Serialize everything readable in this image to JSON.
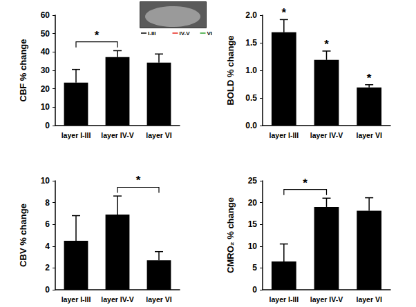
{
  "chart_data": [
    {
      "type": "bar",
      "ylabel": "CBF % change",
      "categories": [
        "layer I-III",
        "layer IV-V",
        "layer VI"
      ],
      "values": [
        23.3,
        37.2,
        34.2
      ],
      "errors": [
        7.2,
        3.5,
        4.7
      ],
      "color": "#000000",
      "ylim": [
        0,
        60
      ],
      "yticks": [
        0,
        10,
        20,
        30,
        40,
        50,
        60
      ],
      "grid": false,
      "annotations": [
        {
          "text": "*",
          "from": "layer I-III",
          "to": "layer IV-V"
        }
      ],
      "inset_legend": [
        {
          "label": "I-III",
          "color": "#000000"
        },
        {
          "label": "IV-V",
          "color": "#e8251c"
        },
        {
          "label": "VI",
          "color": "#2ca02c"
        }
      ]
    },
    {
      "type": "bar",
      "ylabel": "BOLD % change",
      "categories": [
        "layer I-III",
        "layer IV-V",
        "layer VI"
      ],
      "values": [
        1.69,
        1.19,
        0.69
      ],
      "errors": [
        0.23,
        0.16,
        0.05
      ],
      "color": "#000000",
      "ylim": [
        0,
        2
      ],
      "yticks": [
        {
          "value": 0,
          "label": "0.0"
        },
        0.5,
        {
          "value": 1,
          "label": "1.0"
        },
        1.5,
        {
          "value": 2,
          "label": "2.0"
        }
      ],
      "grid": false,
      "annotations": [
        {
          "text": "*",
          "category": "layer I-III"
        },
        {
          "text": "*",
          "category": "layer IV-V"
        },
        {
          "text": "*",
          "category": "layer VI"
        }
      ]
    },
    {
      "type": "bar",
      "ylabel": "CBV % change",
      "categories": [
        "layer I-III",
        "layer IV-V",
        "layer VI"
      ],
      "values": [
        4.5,
        6.9,
        2.7
      ],
      "errors": [
        2.3,
        1.7,
        0.8
      ],
      "color": "#000000",
      "ylim": [
        0,
        10
      ],
      "yticks": [
        0,
        2,
        4,
        6,
        8,
        10
      ],
      "grid": false,
      "annotations": [
        {
          "text": "*",
          "from": "layer IV-V",
          "to": "layer VI"
        }
      ]
    },
    {
      "type": "bar",
      "ylabel": "CMRO₂ % change",
      "categories": [
        "layer I-III",
        "layer IV-V",
        "layer VI"
      ],
      "values": [
        6.5,
        19.0,
        18.1
      ],
      "errors": [
        4.0,
        2.0,
        3.0
      ],
      "color": "#000000",
      "ylim": [
        0,
        25
      ],
      "yticks": [
        0,
        5,
        10,
        15,
        20,
        25
      ],
      "grid": false,
      "annotations": [
        {
          "text": "*",
          "from": "layer I-III",
          "to": "layer IV-V"
        }
      ]
    }
  ]
}
